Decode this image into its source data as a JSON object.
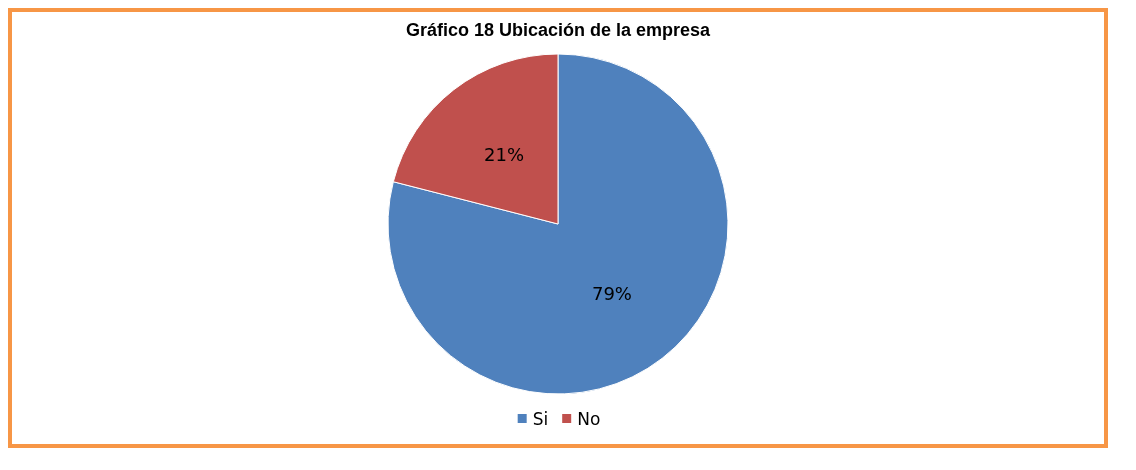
{
  "chart_data": {
    "type": "pie",
    "title": "Gráfico 18 Ubicación de la empresa",
    "categories": [
      "Si",
      "No"
    ],
    "values": [
      79,
      21
    ],
    "colors": [
      "#4f81bd",
      "#c0504d"
    ],
    "value_labels": [
      "79%",
      "21%"
    ],
    "legend": "bottom"
  }
}
